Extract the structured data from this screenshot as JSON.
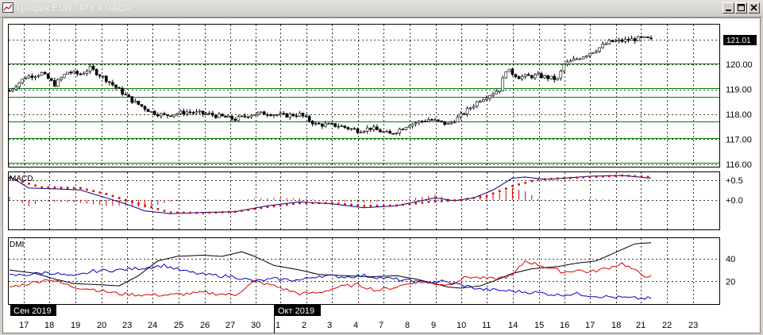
{
  "window": {
    "title": "График EUR /JPY  4 ЧАСА",
    "controls": [
      "minimize-button",
      "maximize-button",
      "close-button"
    ]
  },
  "colors": {
    "candle_up": "#ffffff",
    "candle_down": "#000000",
    "support_lines": "#008000",
    "macd_line": "#000080",
    "macd_signal": "#dd0000",
    "macd_hist": "#dd0000",
    "dmi_adx": "#000000",
    "dmi_plus": "#dd0000",
    "dmi_minus": "#0000cc",
    "grid": "#000000",
    "background": "#ffffff"
  },
  "chart_data": [
    {
      "panel": "price",
      "type": "candlestick",
      "series_name": "EUR/JPY 4H",
      "ylim": [
        115.9,
        121.6
      ],
      "y_ticks": [
        "116.00",
        "117.00",
        "118.00",
        "119.00",
        "120.00"
      ],
      "last_price": "121.01",
      "horizontal_levels": [
        116.05,
        117.05,
        117.7,
        118.7,
        119.05,
        120.05
      ],
      "close_path": [
        [
          0,
          118.95
        ],
        [
          5,
          119.5
        ],
        [
          10,
          119.65
        ],
        [
          14,
          119.2
        ],
        [
          18,
          119.7
        ],
        [
          22,
          119.6
        ],
        [
          25,
          119.85
        ],
        [
          30,
          119.4
        ],
        [
          38,
          118.55
        ],
        [
          44,
          118.1
        ],
        [
          48,
          117.95
        ],
        [
          55,
          118.1
        ],
        [
          62,
          118.0
        ],
        [
          70,
          117.8
        ],
        [
          75,
          118.0
        ],
        [
          80,
          118.05
        ],
        [
          85,
          117.95
        ],
        [
          90,
          118.0
        ],
        [
          95,
          117.6
        ],
        [
          102,
          117.55
        ],
        [
          108,
          117.35
        ],
        [
          112,
          117.45
        ],
        [
          118,
          117.2
        ],
        [
          124,
          117.6
        ],
        [
          130,
          117.8
        ],
        [
          136,
          117.6
        ],
        [
          140,
          117.95
        ],
        [
          146,
          118.6
        ],
        [
          152,
          119.0
        ],
        [
          154,
          119.8
        ],
        [
          158,
          119.5
        ],
        [
          164,
          119.55
        ],
        [
          170,
          119.4
        ],
        [
          172,
          120.0
        ],
        [
          178,
          120.35
        ],
        [
          182,
          120.6
        ],
        [
          186,
          120.9
        ],
        [
          190,
          120.95
        ],
        [
          196,
          121.05
        ],
        [
          199,
          121.0
        ]
      ],
      "candle_count": 200
    },
    {
      "panel": "macd",
      "type": "line",
      "title": "MACD",
      "ylim": [
        -0.75,
        0.7
      ],
      "y_ticks": [
        "+0.5",
        "+0.0"
      ],
      "series": [
        {
          "name": "MACD",
          "path": [
            [
              0,
              0.6
            ],
            [
              6,
              0.3
            ],
            [
              14,
              0.28
            ],
            [
              22,
              0.25
            ],
            [
              30,
              0.05
            ],
            [
              36,
              -0.1
            ],
            [
              42,
              -0.28
            ],
            [
              50,
              -0.35
            ],
            [
              60,
              -0.32
            ],
            [
              70,
              -0.3
            ],
            [
              80,
              -0.15
            ],
            [
              90,
              -0.05
            ],
            [
              100,
              -0.1
            ],
            [
              110,
              -0.2
            ],
            [
              120,
              -0.15
            ],
            [
              126,
              -0.05
            ],
            [
              132,
              0.05
            ],
            [
              138,
              -0.02
            ],
            [
              144,
              0.05
            ],
            [
              150,
              0.25
            ],
            [
              156,
              0.55
            ],
            [
              160,
              0.58
            ],
            [
              166,
              0.52
            ],
            [
              172,
              0.55
            ],
            [
              180,
              0.6
            ],
            [
              190,
              0.62
            ],
            [
              199,
              0.55
            ]
          ]
        },
        {
          "name": "Signal",
          "path": [
            [
              0,
              0.55
            ],
            [
              10,
              0.32
            ],
            [
              22,
              0.3
            ],
            [
              30,
              0.15
            ],
            [
              40,
              -0.1
            ],
            [
              50,
              -0.32
            ],
            [
              60,
              -0.33
            ],
            [
              70,
              -0.3
            ],
            [
              80,
              -0.18
            ],
            [
              90,
              -0.08
            ],
            [
              100,
              -0.08
            ],
            [
              110,
              -0.15
            ],
            [
              120,
              -0.14
            ],
            [
              130,
              -0.05
            ],
            [
              140,
              0.0
            ],
            [
              148,
              0.1
            ],
            [
              156,
              0.35
            ],
            [
              164,
              0.52
            ],
            [
              172,
              0.55
            ],
            [
              180,
              0.58
            ],
            [
              190,
              0.62
            ],
            [
              199,
              0.58
            ]
          ]
        }
      ]
    },
    {
      "panel": "dmi",
      "type": "line",
      "title": "DMI",
      "ylim": [
        0,
        58
      ],
      "y_ticks": [
        "40",
        "20"
      ],
      "series": [
        {
          "name": "ADX",
          "path": [
            [
              0,
              30
            ],
            [
              8,
              27
            ],
            [
              14,
              22
            ],
            [
              20,
              18
            ],
            [
              28,
              17
            ],
            [
              34,
              16
            ],
            [
              40,
              25
            ],
            [
              46,
              38
            ],
            [
              52,
              42
            ],
            [
              60,
              43
            ],
            [
              66,
              42
            ],
            [
              72,
              46
            ],
            [
              76,
              42
            ],
            [
              82,
              34
            ],
            [
              90,
              30
            ],
            [
              96,
              26
            ],
            [
              104,
              25
            ],
            [
              112,
              24
            ],
            [
              120,
              25
            ],
            [
              126,
              22
            ],
            [
              132,
              18
            ],
            [
              136,
              15
            ],
            [
              140,
              14
            ],
            [
              146,
              16
            ],
            [
              150,
              20
            ],
            [
              156,
              27
            ],
            [
              162,
              31
            ],
            [
              170,
              33
            ],
            [
              176,
              36
            ],
            [
              182,
              38
            ],
            [
              190,
              48
            ],
            [
              194,
              53
            ],
            [
              199,
              54
            ]
          ]
        },
        {
          "name": "+DI",
          "path": [
            [
              0,
              15
            ],
            [
              6,
              18
            ],
            [
              12,
              22
            ],
            [
              20,
              15
            ],
            [
              26,
              13
            ],
            [
              34,
              9
            ],
            [
              42,
              8
            ],
            [
              50,
              8
            ],
            [
              60,
              10
            ],
            [
              70,
              8
            ],
            [
              76,
              20
            ],
            [
              82,
              16
            ],
            [
              90,
              9
            ],
            [
              96,
              10
            ],
            [
              102,
              15
            ],
            [
              108,
              17
            ],
            [
              114,
              12
            ],
            [
              120,
              15
            ],
            [
              126,
              20
            ],
            [
              132,
              18
            ],
            [
              136,
              17
            ],
            [
              142,
              24
            ],
            [
              150,
              22
            ],
            [
              156,
              25
            ],
            [
              160,
              38
            ],
            [
              166,
              33
            ],
            [
              172,
              28
            ],
            [
              176,
              30
            ],
            [
              180,
              28
            ],
            [
              186,
              32
            ],
            [
              190,
              36
            ],
            [
              196,
              26
            ],
            [
              199,
              24
            ]
          ]
        },
        {
          "name": "-DI",
          "path": [
            [
              0,
              25
            ],
            [
              6,
              26
            ],
            [
              12,
              28
            ],
            [
              20,
              24
            ],
            [
              26,
              29
            ],
            [
              34,
              30
            ],
            [
              42,
              32
            ],
            [
              48,
              34
            ],
            [
              54,
              29
            ],
            [
              60,
              26
            ],
            [
              70,
              24
            ],
            [
              76,
              20
            ],
            [
              82,
              22
            ],
            [
              90,
              21
            ],
            [
              96,
              25
            ],
            [
              104,
              24
            ],
            [
              110,
              25
            ],
            [
              116,
              23
            ],
            [
              122,
              21
            ],
            [
              128,
              19
            ],
            [
              134,
              20
            ],
            [
              140,
              17
            ],
            [
              146,
              13
            ],
            [
              152,
              12
            ],
            [
              158,
              11
            ],
            [
              164,
              10
            ],
            [
              170,
              8
            ],
            [
              176,
              9
            ],
            [
              182,
              7
            ],
            [
              188,
              6
            ],
            [
              194,
              5
            ],
            [
              199,
              5
            ]
          ]
        }
      ]
    }
  ],
  "x_axis": {
    "month_labels": [
      "Сен 2019",
      "Окт 2019"
    ],
    "day_labels": [
      "17",
      "18",
      "19",
      "20",
      "23",
      "24",
      "25",
      "26",
      "27",
      "30",
      "1",
      "2",
      "3",
      "4",
      "7",
      "8",
      "9",
      "10",
      "11",
      "14",
      "15",
      "16",
      "17",
      "18",
      "21",
      "22",
      "23"
    ]
  }
}
